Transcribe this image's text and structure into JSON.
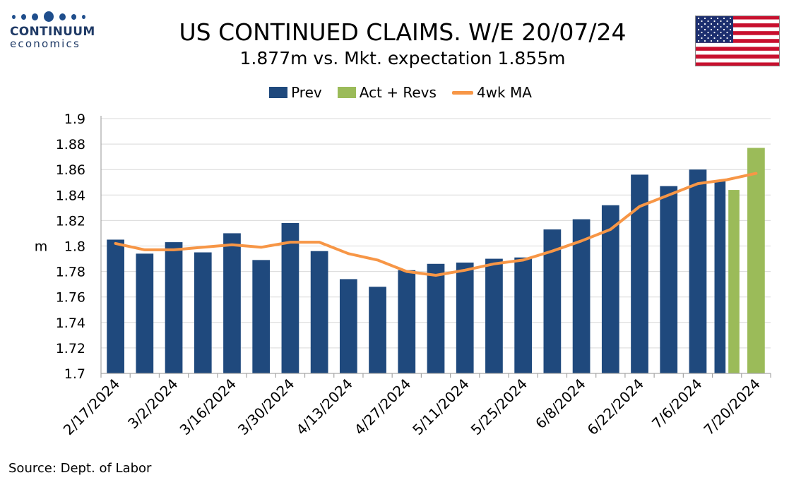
{
  "header": {
    "logo_name": "CONTINUUM",
    "logo_sub": "economics",
    "title": "US CONTINUED CLAIMS. W/E 20/07/24",
    "subtitle": "1.877m vs. Mkt. expectation 1.855m"
  },
  "flag": "us-flag-icon",
  "colors": {
    "prev": "#1f497d",
    "act": "#9bbb59",
    "ma": "#f79646",
    "grid": "#d9d9d9",
    "axis": "#a6a6a6",
    "logo": "#1f4e8c"
  },
  "legend": {
    "prev": "Prev",
    "act": "Act + Revs",
    "ma": "4wk MA"
  },
  "source": "Source: Dept. of Labor",
  "chart_data": {
    "type": "bar",
    "ylabel": "m",
    "ylim": [
      1.7,
      1.9
    ],
    "yticks": [
      "1.7",
      "1.72",
      "1.74",
      "1.76",
      "1.78",
      "1.8",
      "1.82",
      "1.84",
      "1.86",
      "1.88",
      "1.9"
    ],
    "grid": true,
    "legend_position": "top-center",
    "categories": [
      "2/17/2024",
      "2/24/2024",
      "3/2/2024",
      "3/9/2024",
      "3/16/2024",
      "3/23/2024",
      "3/30/2024",
      "4/6/2024",
      "4/13/2024",
      "4/20/2024",
      "4/27/2024",
      "5/4/2024",
      "5/11/2024",
      "5/18/2024",
      "5/25/2024",
      "6/1/2024",
      "6/8/2024",
      "6/15/2024",
      "6/22/2024",
      "6/29/2024",
      "7/6/2024",
      "7/13/2024",
      "7/20/2024"
    ],
    "xtick_labels": [
      "2/17/2024",
      "3/2/2024",
      "3/16/2024",
      "3/30/2024",
      "4/13/2024",
      "4/27/2024",
      "5/11/2024",
      "5/25/2024",
      "6/8/2024",
      "6/22/2024",
      "7/6/2024",
      "7/20/2024"
    ],
    "series": [
      {
        "name": "Prev",
        "values": [
          1.805,
          1.794,
          1.803,
          1.795,
          1.81,
          1.789,
          1.818,
          1.796,
          1.774,
          1.768,
          1.781,
          1.786,
          1.787,
          1.79,
          1.791,
          1.813,
          1.821,
          1.832,
          1.856,
          1.847,
          1.86,
          1.851,
          null
        ]
      },
      {
        "name": "Act + Revs",
        "values": [
          null,
          null,
          null,
          null,
          null,
          null,
          null,
          null,
          null,
          null,
          null,
          null,
          null,
          null,
          null,
          null,
          null,
          null,
          null,
          null,
          null,
          1.844,
          1.877
        ]
      },
      {
        "name": "4wk MA",
        "values": [
          1.802,
          1.797,
          1.797,
          1.799,
          1.801,
          1.799,
          1.803,
          1.803,
          1.794,
          1.789,
          1.78,
          1.777,
          1.781,
          1.786,
          1.789,
          1.796,
          1.804,
          1.813,
          1.831,
          1.84,
          1.849,
          1.852,
          1.857
        ]
      }
    ]
  }
}
